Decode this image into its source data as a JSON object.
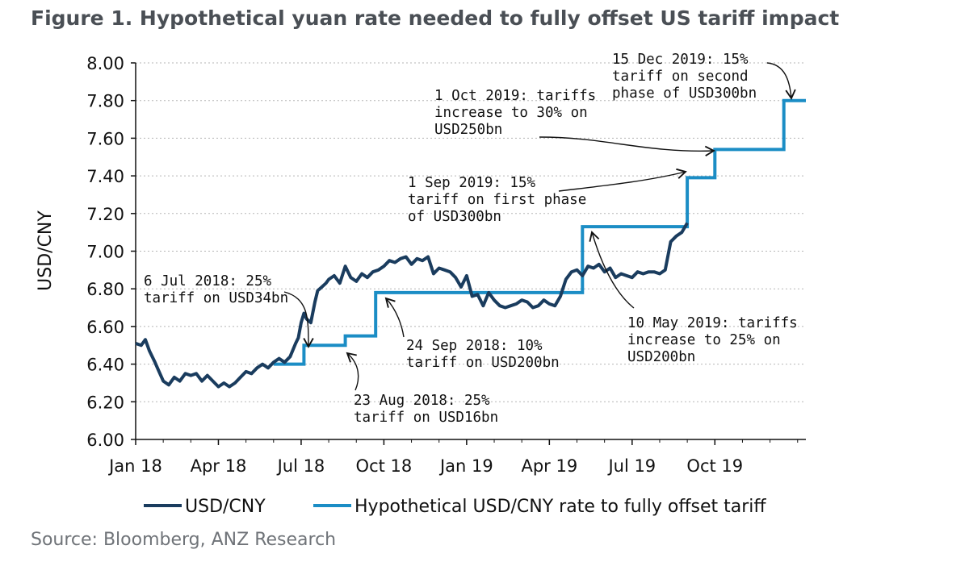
{
  "title": "Figure 1.  Hypothetical yuan rate needed to fully offset US tariff impact",
  "source": "Source: Bloomberg, ANZ Research",
  "colors": {
    "usdcny": "#1a3c5e",
    "hypothetical": "#1b8dc5",
    "grid": "#b5b5b5"
  },
  "chart_data": {
    "type": "line",
    "ylabel": "USD/CNY",
    "ylim": [
      6.0,
      8.0
    ],
    "yticks": [
      "6.00",
      "6.20",
      "6.40",
      "6.60",
      "6.80",
      "7.00",
      "7.20",
      "7.40",
      "7.60",
      "7.80",
      "8.00"
    ],
    "xlim_months": [
      0,
      24.3
    ],
    "xticks": [
      {
        "label": "Jan 18",
        "m": 0
      },
      {
        "label": "Apr 18",
        "m": 3
      },
      {
        "label": "Jul 18",
        "m": 6
      },
      {
        "label": "Oct 18",
        "m": 9
      },
      {
        "label": "Jan 19",
        "m": 12
      },
      {
        "label": "Apr 19",
        "m": 15
      },
      {
        "label": "Jul 19",
        "m": 18
      },
      {
        "label": "Oct 19",
        "m": 21
      }
    ],
    "grid": "horizontal dotted",
    "series": [
      {
        "name": "USD/CNY",
        "x": [
          0,
          0.2,
          0.35,
          0.5,
          0.7,
          0.85,
          1.0,
          1.2,
          1.4,
          1.6,
          1.8,
          2.0,
          2.2,
          2.4,
          2.6,
          2.8,
          3.0,
          3.2,
          3.4,
          3.6,
          3.8,
          4.0,
          4.2,
          4.4,
          4.6,
          4.8,
          5.0,
          5.2,
          5.4,
          5.6,
          5.8,
          5.9,
          6.0,
          6.1,
          6.2,
          6.35,
          6.5,
          6.6,
          6.75,
          6.9,
          7.0,
          7.2,
          7.4,
          7.6,
          7.8,
          8.0,
          8.2,
          8.4,
          8.6,
          8.8,
          9.0,
          9.2,
          9.4,
          9.6,
          9.8,
          10.0,
          10.2,
          10.4,
          10.6,
          10.8,
          11.0,
          11.2,
          11.4,
          11.6,
          11.8,
          12.0,
          12.2,
          12.4,
          12.6,
          12.8,
          13.0,
          13.2,
          13.4,
          13.6,
          13.8,
          14.0,
          14.2,
          14.4,
          14.6,
          14.8,
          15.0,
          15.2,
          15.4,
          15.6,
          15.8,
          16.0,
          16.2,
          16.4,
          16.6,
          16.8,
          17.0,
          17.2,
          17.4,
          17.6,
          17.8,
          18.0,
          18.2,
          18.4,
          18.6,
          18.8,
          19.0,
          19.2,
          19.4,
          19.6,
          19.8,
          20.0
        ],
        "values": [
          6.51,
          6.5,
          6.53,
          6.47,
          6.41,
          6.36,
          6.31,
          6.29,
          6.33,
          6.31,
          6.35,
          6.34,
          6.35,
          6.31,
          6.34,
          6.31,
          6.28,
          6.3,
          6.28,
          6.3,
          6.33,
          6.36,
          6.35,
          6.38,
          6.4,
          6.38,
          6.41,
          6.43,
          6.41,
          6.44,
          6.51,
          6.54,
          6.62,
          6.67,
          6.64,
          6.62,
          6.73,
          6.79,
          6.81,
          6.83,
          6.85,
          6.87,
          6.83,
          6.92,
          6.86,
          6.84,
          6.88,
          6.86,
          6.89,
          6.9,
          6.92,
          6.95,
          6.94,
          6.96,
          6.97,
          6.93,
          6.96,
          6.95,
          6.97,
          6.88,
          6.91,
          6.9,
          6.89,
          6.86,
          6.81,
          6.87,
          6.76,
          6.77,
          6.71,
          6.78,
          6.74,
          6.71,
          6.7,
          6.71,
          6.72,
          6.74,
          6.73,
          6.7,
          6.71,
          6.74,
          6.72,
          6.71,
          6.76,
          6.85,
          6.89,
          6.9,
          6.87,
          6.92,
          6.91,
          6.93,
          6.89,
          6.91,
          6.86,
          6.88,
          6.87,
          6.86,
          6.89,
          6.88,
          6.89,
          6.89,
          6.88,
          6.9,
          7.05,
          7.08,
          7.1,
          7.15
        ]
      },
      {
        "name": "Hypothetical USD/CNY rate to fully offset tariff",
        "x": [
          5.0,
          6.1,
          6.1,
          7.6,
          7.6,
          8.7,
          8.7,
          16.2,
          16.2,
          20.0,
          20.0,
          21.0,
          21.0,
          23.5,
          23.5,
          24.3
        ],
        "values": [
          6.4,
          6.4,
          6.5,
          6.5,
          6.55,
          6.55,
          6.78,
          6.78,
          7.13,
          7.13,
          7.39,
          7.39,
          7.54,
          7.54,
          7.8,
          7.8
        ]
      }
    ],
    "annotations": [
      {
        "lines": [
          "6 Jul 2018: 25%",
          "tariff on USD34bn"
        ]
      },
      {
        "lines": [
          "23 Aug 2018: 25%",
          "tariff on USD16bn"
        ]
      },
      {
        "lines": [
          "24 Sep 2018: 10%",
          "tariff on USD200bn"
        ]
      },
      {
        "lines": [
          "10 May 2019: tariffs",
          "increase to 25% on",
          "USD200bn"
        ]
      },
      {
        "lines": [
          "1 Sep 2019: 15%",
          "tariff on first phase",
          "of USD300bn"
        ]
      },
      {
        "lines": [
          "1 Oct 2019: tariffs",
          "increase to 30% on",
          "USD250bn"
        ]
      },
      {
        "lines": [
          "15 Dec 2019: 15%",
          "tariff on second",
          "phase of USD300bn"
        ]
      }
    ],
    "legend": [
      "USD/CNY",
      "Hypothetical USD/CNY rate to fully offset tariff"
    ],
    "legend_position": "bottom"
  }
}
